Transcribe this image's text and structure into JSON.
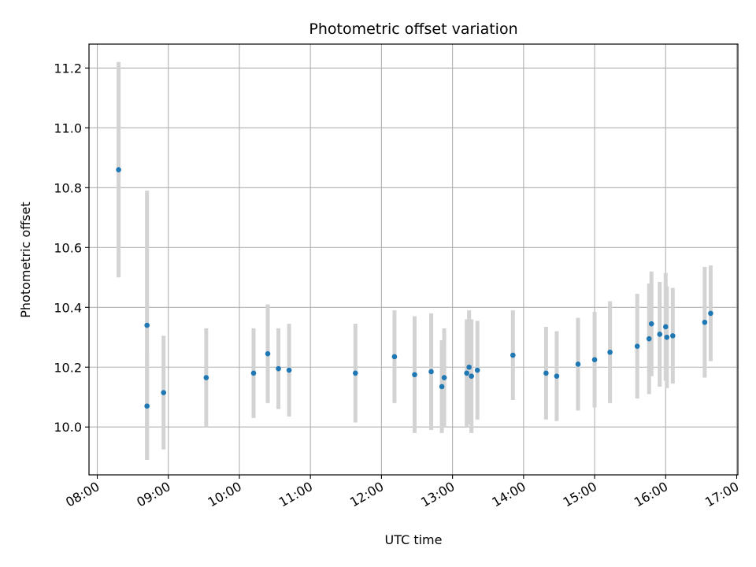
{
  "chart_data": {
    "type": "scatter",
    "title": "Photometric offset variation",
    "xlabel": "UTC time",
    "ylabel": "Photometric offset",
    "xlim": [
      "07:53",
      "17:01"
    ],
    "ylim": [
      9.84,
      11.28
    ],
    "grid": true,
    "x_ticks": [
      "08:00",
      "09:00",
      "10:00",
      "11:00",
      "12:00",
      "13:00",
      "14:00",
      "15:00",
      "16:00",
      "17:00"
    ],
    "y_ticks": [
      10.0,
      10.2,
      10.4,
      10.6,
      10.8,
      11.0,
      11.2
    ],
    "point_color": "#1f77b4",
    "errorbar_color": "#d3d3d3",
    "series": [
      {
        "points": [
          {
            "x": "08:18",
            "y": 10.86,
            "yerr": 0.36
          },
          {
            "x": "08:42",
            "y": 10.34,
            "yerr": 0.45
          },
          {
            "x": "08:42",
            "y": 10.07,
            "yerr": 0.18
          },
          {
            "x": "08:56",
            "y": 10.115,
            "yerr": 0.19
          },
          {
            "x": "09:32",
            "y": 10.165,
            "yerr": 0.165
          },
          {
            "x": "10:12",
            "y": 10.18,
            "yerr": 0.15
          },
          {
            "x": "10:24",
            "y": 10.245,
            "yerr": 0.165
          },
          {
            "x": "10:33",
            "y": 10.195,
            "yerr": 0.135
          },
          {
            "x": "10:42",
            "y": 10.19,
            "yerr": 0.155
          },
          {
            "x": "11:38",
            "y": 10.18,
            "yerr": 0.165
          },
          {
            "x": "12:11",
            "y": 10.235,
            "yerr": 0.155
          },
          {
            "x": "12:28",
            "y": 10.175,
            "yerr": 0.195
          },
          {
            "x": "12:42",
            "y": 10.185,
            "yerr": 0.195
          },
          {
            "x": "12:51",
            "y": 10.135,
            "yerr": 0.155
          },
          {
            "x": "12:53",
            "y": 10.165,
            "yerr": 0.165
          },
          {
            "x": "13:12",
            "y": 10.18,
            "yerr": 0.18
          },
          {
            "x": "13:14",
            "y": 10.2,
            "yerr": 0.19
          },
          {
            "x": "13:16",
            "y": 10.17,
            "yerr": 0.19
          },
          {
            "x": "13:21",
            "y": 10.19,
            "yerr": 0.165
          },
          {
            "x": "13:51",
            "y": 10.24,
            "yerr": 0.15
          },
          {
            "x": "14:19",
            "y": 10.18,
            "yerr": 0.155
          },
          {
            "x": "14:28",
            "y": 10.17,
            "yerr": 0.15
          },
          {
            "x": "14:46",
            "y": 10.21,
            "yerr": 0.155
          },
          {
            "x": "15:00",
            "y": 10.225,
            "yerr": 0.16
          },
          {
            "x": "15:13",
            "y": 10.25,
            "yerr": 0.17
          },
          {
            "x": "15:36",
            "y": 10.27,
            "yerr": 0.175
          },
          {
            "x": "15:46",
            "y": 10.295,
            "yerr": 0.185
          },
          {
            "x": "15:48",
            "y": 10.345,
            "yerr": 0.175
          },
          {
            "x": "15:55",
            "y": 10.31,
            "yerr": 0.175
          },
          {
            "x": "16:00",
            "y": 10.335,
            "yerr": 0.18
          },
          {
            "x": "16:01",
            "y": 10.3,
            "yerr": 0.17
          },
          {
            "x": "16:06",
            "y": 10.305,
            "yerr": 0.16
          },
          {
            "x": "16:33",
            "y": 10.35,
            "yerr": 0.185
          },
          {
            "x": "16:38",
            "y": 10.38,
            "yerr": 0.16
          }
        ]
      }
    ]
  }
}
